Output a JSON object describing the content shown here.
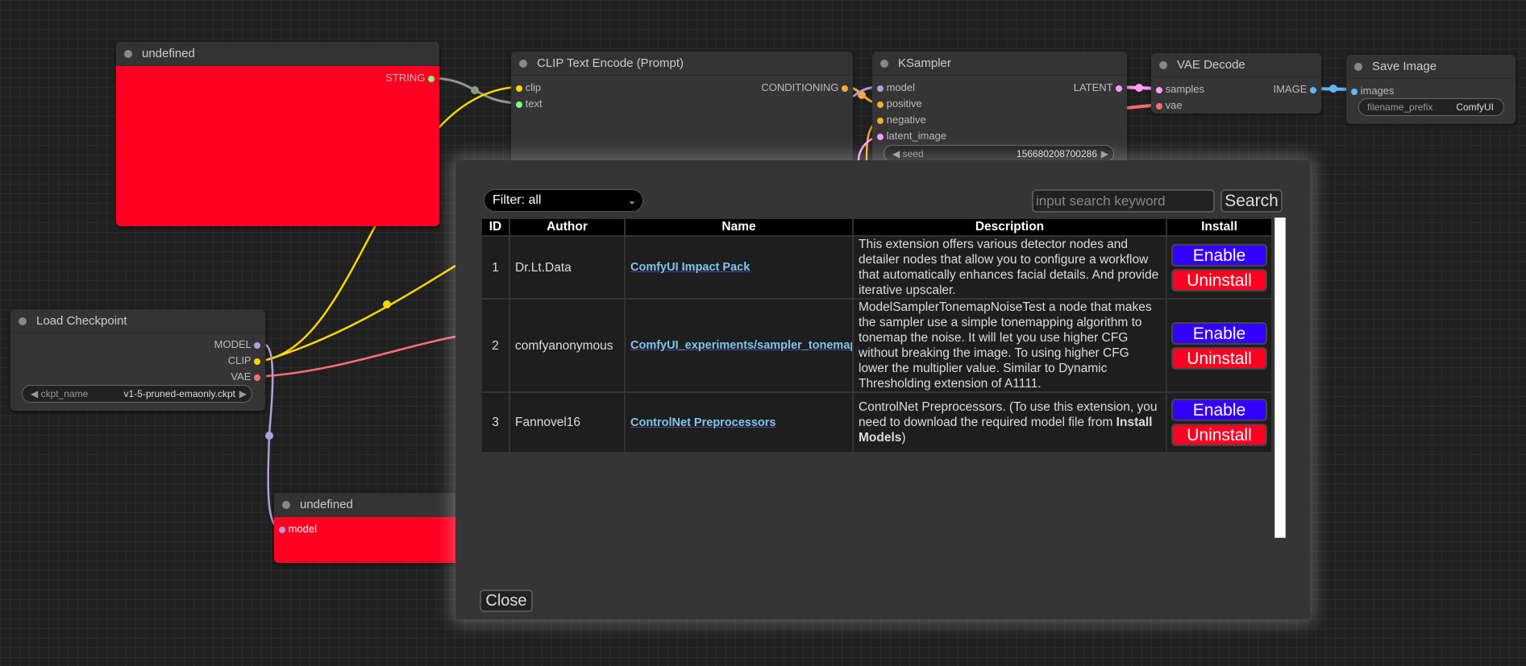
{
  "nodes": {
    "undefined_top": {
      "title": "undefined",
      "output": "STRING"
    },
    "clip": {
      "title": "CLIP Text Encode (Prompt)",
      "inputs": [
        "clip",
        "text"
      ],
      "output": "CONDITIONING"
    },
    "ksampler": {
      "title": "KSampler",
      "inputs": [
        "model",
        "positive",
        "negative",
        "latent_image"
      ],
      "output": "LATENT",
      "seed_label": "seed",
      "seed_value": "156680208700286"
    },
    "vae": {
      "title": "VAE Decode",
      "inputs": [
        "samples",
        "vae"
      ],
      "output": "IMAGE"
    },
    "save": {
      "title": "Save Image",
      "input": "images",
      "prefix_label": "filename_prefix",
      "prefix_value": "ComfyUI"
    },
    "checkpoint": {
      "title": "Load Checkpoint",
      "outputs": [
        "MODEL",
        "CLIP",
        "VAE"
      ],
      "ckpt_label": "ckpt_name",
      "ckpt_value": "v1-5-pruned-emaonly.ckpt"
    },
    "undefined_bottom": {
      "title": "undefined",
      "input": "model"
    }
  },
  "colors": {
    "node_error": "#ff0022",
    "enable": "#3300ff",
    "uninstall": "#ff0022",
    "clip": "#ffd500",
    "model": "#b39ddb",
    "vae": "#ff6e6e",
    "latent": "#ff9cf9",
    "image": "#64b5f6",
    "conditioning": "#ffa931",
    "string": "#7dff7d"
  },
  "dialog": {
    "filter": "Filter: all",
    "search_placeholder": "input search keyword",
    "search_button": "Search",
    "headers": [
      "ID",
      "Author",
      "Name",
      "Description",
      "Install"
    ],
    "rows": [
      {
        "id": "1",
        "author": "Dr.Lt.Data",
        "name": "ComfyUI Impact Pack",
        "desc": "This extension offers various detector nodes and detailer nodes that allow you to configure a workflow that automatically enhances facial details. And provide iterative upscaler."
      },
      {
        "id": "2",
        "author": "comfyanonymous",
        "name": "ComfyUI_experiments/sampler_tonemap",
        "desc": "ModelSamplerTonemapNoiseTest a node that makes the sampler use a simple tonemapping algorithm to tonemap the noise. It will let you use higher CFG without breaking the image. To using higher CFG lower the multiplier value. Similar to Dynamic Thresholding extension of A1111."
      },
      {
        "id": "3",
        "author": "Fannovel16",
        "name": "ControlNet Preprocessors",
        "desc": "ControlNet Preprocessors. (To use this extension, you need to download the required model file from ",
        "desc_bold": "Install Models",
        "desc_end": ")"
      }
    ],
    "enable_label": "Enable",
    "uninstall_label": "Uninstall",
    "close": "Close"
  }
}
